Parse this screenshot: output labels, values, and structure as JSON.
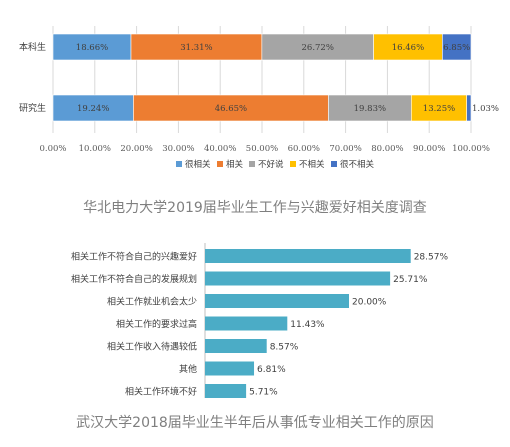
{
  "chart_data": [
    {
      "type": "bar",
      "orientation": "horizontal",
      "stacked": true,
      "percent": true,
      "caption": "华北电力大学2019届毕业生工作与兴趣爱好相关度调查",
      "categories": [
        "本科生",
        "研究生"
      ],
      "series": [
        {
          "name": "很相关",
          "color": "#5b9bd5",
          "values": [
            18.66,
            19.24
          ],
          "labels": [
            "18.66%",
            "19.24%"
          ]
        },
        {
          "name": "相关",
          "color": "#ed7d31",
          "values": [
            31.31,
            46.65
          ],
          "labels": [
            "31.31%",
            "46.65%"
          ]
        },
        {
          "name": "不好说",
          "color": "#a5a5a5",
          "values": [
            26.72,
            19.83
          ],
          "labels": [
            "26.72%",
            "19.83%"
          ]
        },
        {
          "name": "不相关",
          "color": "#ffc000",
          "values": [
            16.46,
            13.25
          ],
          "labels": [
            "16.46%",
            "13.25%"
          ]
        },
        {
          "name": "很不相关",
          "color": "#4472c4",
          "values": [
            6.85,
            1.03
          ],
          "labels": [
            "6.85%",
            "1.03%"
          ]
        }
      ],
      "xlim": [
        0,
        100
      ],
      "xticks": [
        "0.00%",
        "10.00%",
        "20.00%",
        "30.00%",
        "40.00%",
        "50.00%",
        "60.00%",
        "70.00%",
        "80.00%",
        "90.00%",
        "100.00%"
      ],
      "legend_position": "bottom",
      "grid": true
    },
    {
      "type": "bar",
      "orientation": "horizontal",
      "caption": "武汉大学2018届毕业生半年后从事低专业相关工作的原因",
      "color": "#4bacc6",
      "categories": [
        "相关工作不符合自己的兴趣爱好",
        "相关工作不符合自己的发展规划",
        "相关工作就业机会太少",
        "相关工作的要求过高",
        "相关工作收入待遇较低",
        "其他",
        "相关工作环境不好"
      ],
      "values": [
        28.57,
        25.71,
        20.0,
        11.43,
        8.57,
        6.81,
        5.71
      ],
      "labels": [
        "28.57%",
        "25.71%",
        "20.00%",
        "11.43%",
        "8.57%",
        "6.81%",
        "5.71%"
      ],
      "xlim": [
        0,
        30
      ],
      "grid": false
    }
  ]
}
